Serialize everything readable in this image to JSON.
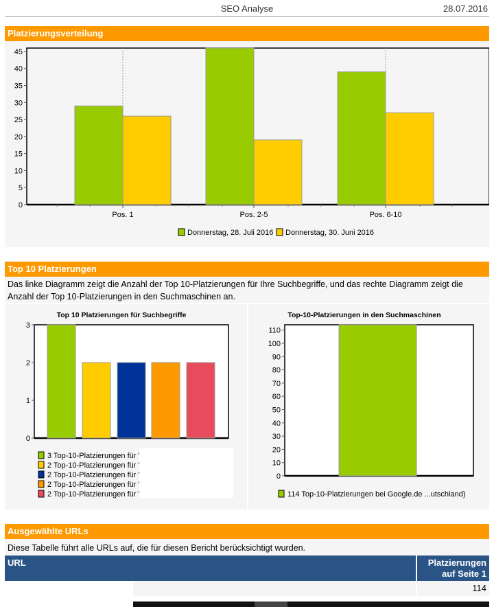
{
  "header": {
    "title": "SEO Analyse",
    "date": "28.07.2016"
  },
  "sections": {
    "distribution": "Platzierungsverteilung",
    "top10": "Top 10 Platzierungen",
    "top10_desc": "Das linke Diagramm zeigt die Anzahl der Top 10-Platzierungen für Ihre Suchbegriffe, und das rechte Diagramm zeigt die Anzahl der Top 10-Platzierungen in den Suchmaschinen an.",
    "urls": "Ausgewählte URLs",
    "urls_desc": "Diese Tabelle führt alle URLs auf, die für diesen Bericht berücksichtigt wurden."
  },
  "table": {
    "headers": [
      "URL",
      "Platzierungen auf Seite 1"
    ],
    "rows": [
      {
        "url": "",
        "value": "114"
      }
    ]
  },
  "chart_data": [
    {
      "type": "bar",
      "title": "",
      "categories": [
        "Pos. 1",
        "Pos. 2-5",
        "Pos. 6-10"
      ],
      "series": [
        {
          "name": "Donnerstag, 28. Juli 2016",
          "color": "#99cc00",
          "values": [
            29,
            46,
            39
          ]
        },
        {
          "name": "Donnerstag, 30. Juni 2016",
          "color": "#ffcc00",
          "values": [
            26,
            19,
            27
          ]
        }
      ],
      "ylim": [
        0,
        46
      ],
      "yticks": [
        0,
        5,
        10,
        15,
        20,
        25,
        30,
        35,
        40,
        45
      ],
      "legend": "bottom"
    },
    {
      "type": "bar",
      "title": "Top 10 Platzierungen für Suchbegriffe",
      "values": [
        3,
        2,
        2,
        2,
        2
      ],
      "colors": [
        "#99cc00",
        "#ffcc00",
        "#003399",
        "#ff9900",
        "#e84c5c"
      ],
      "legend_labels": [
        "3 Top-10-Platzierungen für '",
        "2 Top-10-Platzierungen für '",
        "2 Top-10-Platzierungen für '",
        "2 Top-10-Platzierungen für '",
        "2 Top-10-Platzierungen für '"
      ],
      "ylim": [
        0,
        3
      ],
      "yticks": [
        0,
        1,
        2,
        3
      ],
      "legend": "bottom"
    },
    {
      "type": "bar",
      "title": "Top-10-Platzierungen in den Suchmaschinen",
      "values": [
        114
      ],
      "colors": [
        "#99cc00"
      ],
      "legend_labels": [
        "114 Top-10-Platzierungen bei Google.de ...utschland)"
      ],
      "ylim": [
        0,
        114
      ],
      "yticks": [
        0,
        10,
        20,
        30,
        40,
        50,
        60,
        70,
        80,
        90,
        100,
        110
      ],
      "legend": "bottom"
    }
  ]
}
